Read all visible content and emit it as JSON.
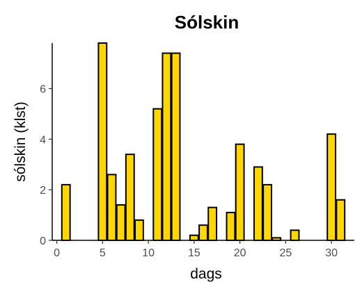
{
  "chart_data": {
    "type": "bar",
    "title": "Sólskin",
    "xlabel": "dags",
    "ylabel": "sólskin (klst)",
    "x": [
      1,
      2,
      3,
      4,
      5,
      6,
      7,
      8,
      9,
      10,
      11,
      12,
      13,
      14,
      15,
      16,
      17,
      18,
      19,
      20,
      21,
      22,
      23,
      24,
      25,
      26,
      27,
      28,
      29,
      30,
      31
    ],
    "values": [
      2.2,
      0,
      0,
      0,
      7.8,
      2.6,
      1.4,
      3.4,
      0.8,
      0,
      5.2,
      7.4,
      7.4,
      0,
      0.2,
      0.6,
      1.3,
      0,
      1.1,
      3.8,
      0,
      2.9,
      2.2,
      0.1,
      0,
      0.4,
      0,
      0,
      0,
      4.2,
      1.6
    ],
    "xlim": [
      -0.5,
      32.5
    ],
    "ylim": [
      0,
      7.8
    ],
    "xticks": [
      0,
      5,
      10,
      15,
      20,
      25,
      30
    ],
    "yticks": [
      0,
      2,
      4,
      6
    ],
    "grid": false,
    "bar_color": "#FFD700",
    "bar_edge_color": "#000000"
  }
}
